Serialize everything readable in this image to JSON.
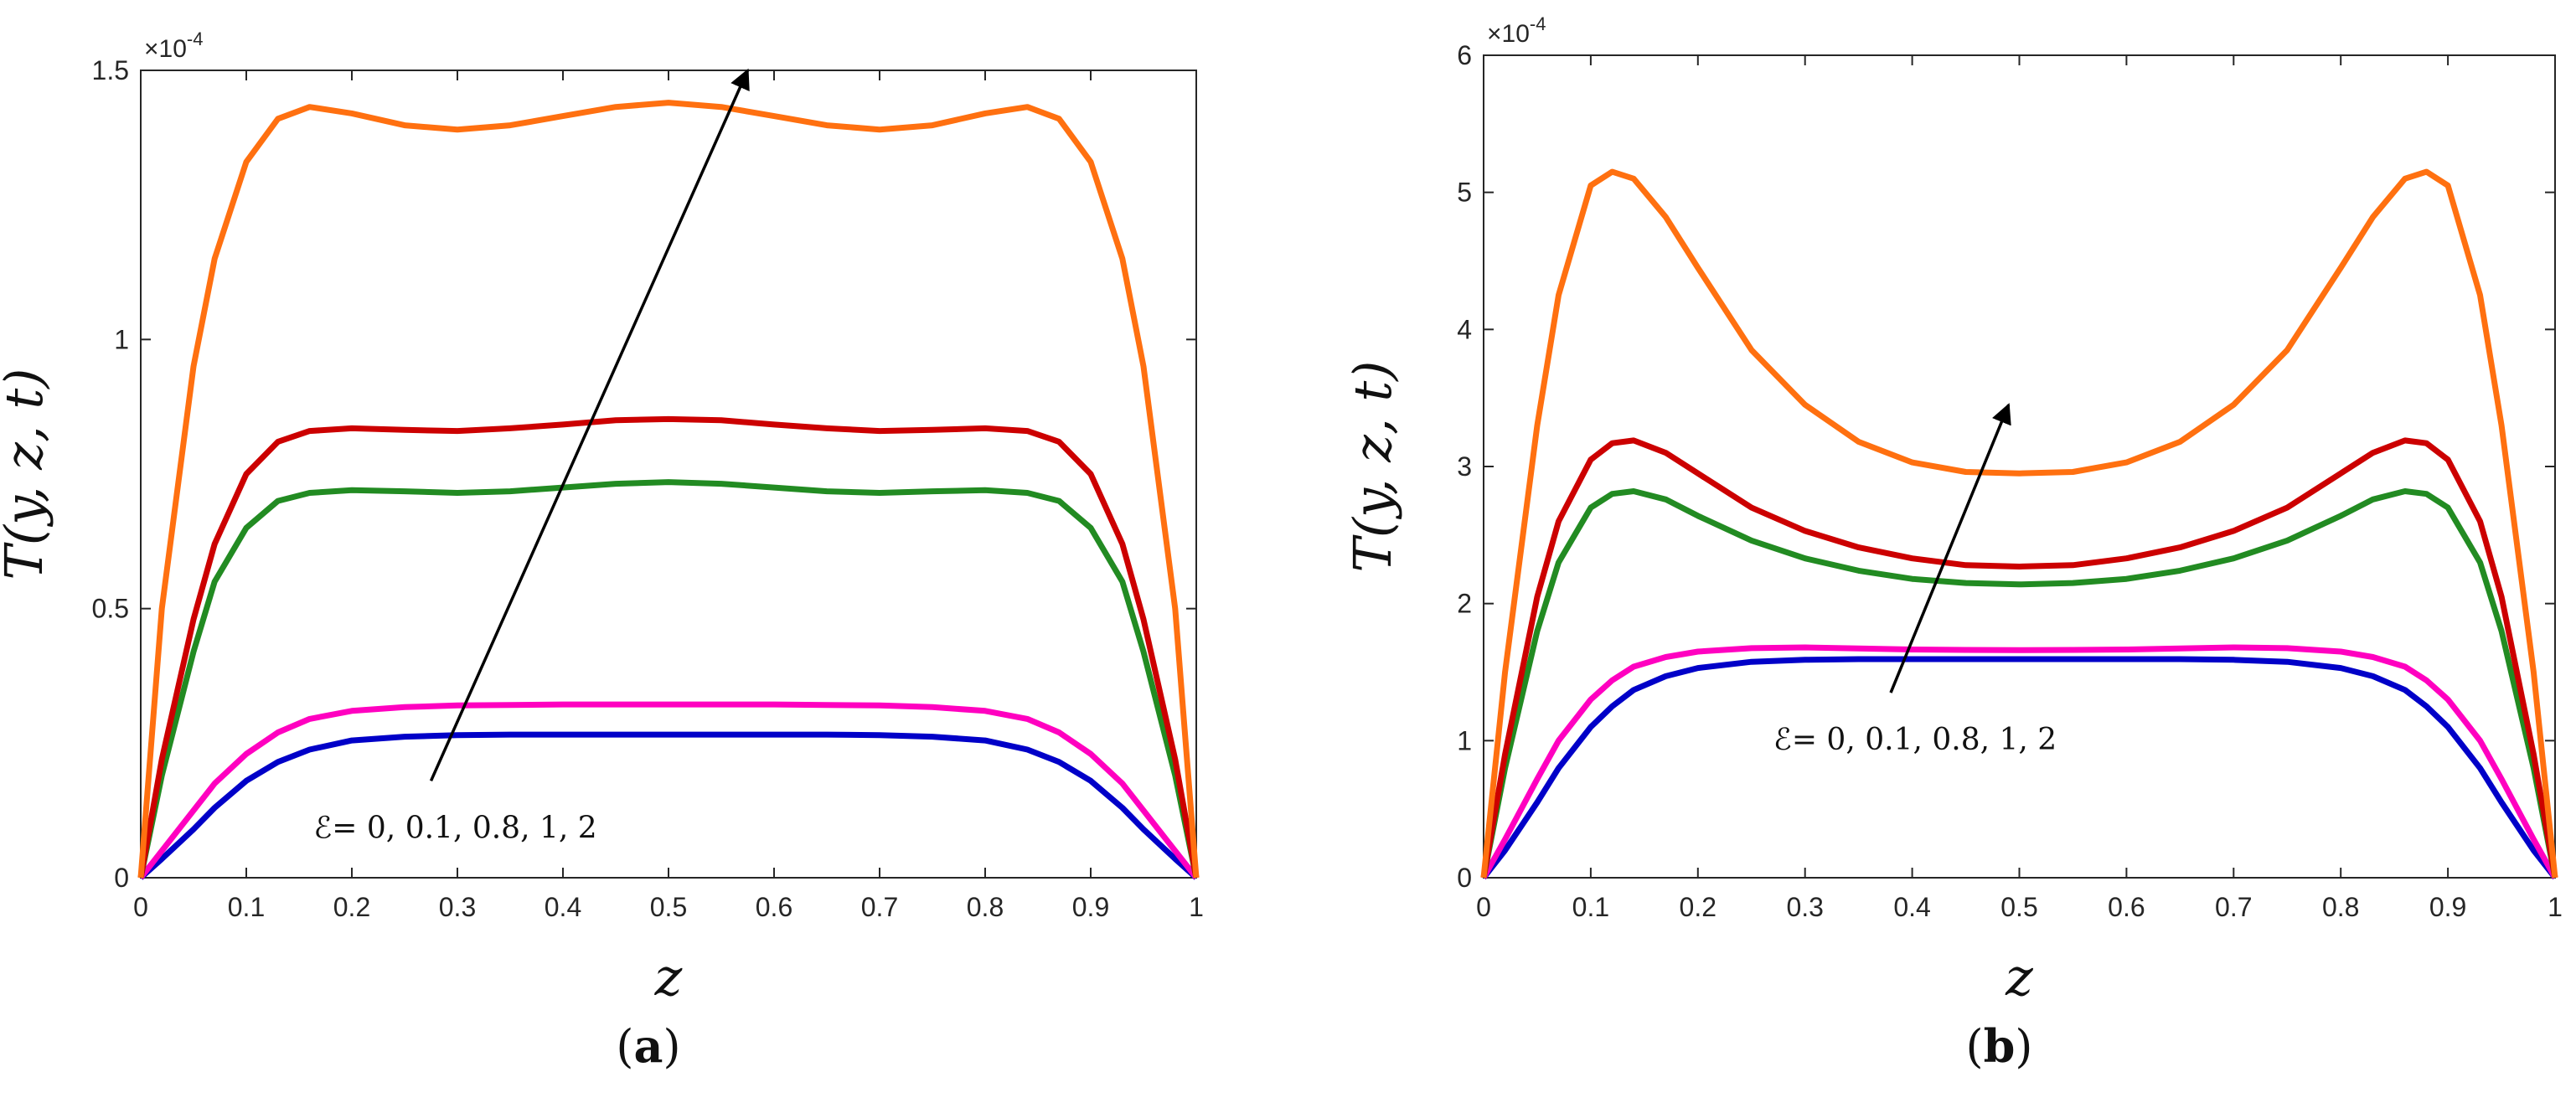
{
  "chart_data": [
    {
      "type": "line",
      "panel": "(a)",
      "panel_letter": "a",
      "xlabel": "z",
      "ylabel": "T(y, z, t)",
      "xlim": [
        0,
        1
      ],
      "ylim": [
        0,
        1.5
      ],
      "y_exponent": "×10^-4",
      "xticks": [
        0,
        0.1,
        0.2,
        0.3,
        0.4,
        0.5,
        0.6,
        0.7,
        0.8,
        0.9,
        1
      ],
      "xtick_labels": [
        "0",
        "0.1",
        "0.2",
        "0.3",
        "0.4",
        "0.5",
        "0.6",
        "0.7",
        "0.8",
        "0.9",
        "1"
      ],
      "yticks": [
        0,
        0.5,
        1,
        1.5
      ],
      "ytick_labels": [
        "0",
        "0.5",
        "1",
        "1.5"
      ],
      "annotation": {
        "text": "ℰ= 0, 0.1, 0.8, 1, 2",
        "arrow_from": [
          0.275,
          0.18
        ],
        "arrow_to": [
          0.575,
          1.5
        ]
      },
      "x": [
        0,
        0.02,
        0.05,
        0.07,
        0.1,
        0.13,
        0.16,
        0.2,
        0.25,
        0.3,
        0.35,
        0.4,
        0.45,
        0.5,
        0.55,
        0.6,
        0.65,
        0.7,
        0.75,
        0.8,
        0.84,
        0.87,
        0.9,
        0.93,
        0.95,
        0.98,
        1
      ],
      "series": [
        {
          "name": "ℰ = 0",
          "color": "#0000c8",
          "values": [
            0,
            0.035,
            0.09,
            0.13,
            0.18,
            0.215,
            0.238,
            0.255,
            0.262,
            0.265,
            0.266,
            0.266,
            0.266,
            0.266,
            0.266,
            0.266,
            0.266,
            0.265,
            0.262,
            0.255,
            0.238,
            0.215,
            0.18,
            0.13,
            0.09,
            0.035,
            0
          ]
        },
        {
          "name": "ℰ = 0.1",
          "color": "#ff00c0",
          "values": [
            0,
            0.05,
            0.125,
            0.175,
            0.23,
            0.27,
            0.295,
            0.31,
            0.317,
            0.32,
            0.321,
            0.322,
            0.322,
            0.322,
            0.322,
            0.322,
            0.321,
            0.32,
            0.317,
            0.31,
            0.295,
            0.27,
            0.23,
            0.175,
            0.125,
            0.05,
            0
          ]
        },
        {
          "name": "ℰ = 0.8",
          "color": "#228b22",
          "values": [
            0,
            0.19,
            0.42,
            0.55,
            0.65,
            0.7,
            0.715,
            0.72,
            0.718,
            0.715,
            0.718,
            0.725,
            0.732,
            0.735,
            0.732,
            0.725,
            0.718,
            0.715,
            0.718,
            0.72,
            0.715,
            0.7,
            0.65,
            0.55,
            0.42,
            0.19,
            0
          ]
        },
        {
          "name": "ℰ = 1",
          "color": "#cc0000",
          "values": [
            0,
            0.22,
            0.48,
            0.62,
            0.75,
            0.81,
            0.83,
            0.835,
            0.832,
            0.83,
            0.835,
            0.842,
            0.85,
            0.852,
            0.85,
            0.842,
            0.835,
            0.83,
            0.832,
            0.835,
            0.83,
            0.81,
            0.75,
            0.62,
            0.48,
            0.22,
            0
          ]
        },
        {
          "name": "ℰ = 2",
          "color": "#ff7010",
          "values": [
            0,
            0.5,
            0.95,
            1.15,
            1.33,
            1.41,
            1.432,
            1.42,
            1.398,
            1.39,
            1.398,
            1.415,
            1.432,
            1.44,
            1.432,
            1.415,
            1.398,
            1.39,
            1.398,
            1.42,
            1.432,
            1.41,
            1.33,
            1.15,
            0.95,
            0.5,
            0
          ]
        }
      ]
    },
    {
      "type": "line",
      "panel": "(b)",
      "panel_letter": "b",
      "xlabel": "z",
      "ylabel": "T(y, z, t)",
      "xlim": [
        0,
        1
      ],
      "ylim": [
        0,
        6
      ],
      "y_exponent": "×10^-4",
      "xticks": [
        0,
        0.1,
        0.2,
        0.3,
        0.4,
        0.5,
        0.6,
        0.7,
        0.8,
        0.9,
        1
      ],
      "xtick_labels": [
        "0",
        "0.1",
        "0.2",
        "0.3",
        "0.4",
        "0.5",
        "0.6",
        "0.7",
        "0.8",
        "0.9",
        "1"
      ],
      "yticks": [
        0,
        1,
        2,
        3,
        4,
        5,
        6
      ],
      "ytick_labels": [
        "0",
        "1",
        "2",
        "3",
        "4",
        "5",
        "6"
      ],
      "annotation": {
        "text": "ℰ= 0, 0.1, 0.8, 1, 2",
        "arrow_from": [
          0.38,
          1.35
        ],
        "arrow_to": [
          0.49,
          3.45
        ]
      },
      "x": [
        0,
        0.02,
        0.05,
        0.07,
        0.1,
        0.12,
        0.14,
        0.17,
        0.2,
        0.25,
        0.3,
        0.35,
        0.4,
        0.45,
        0.5,
        0.55,
        0.6,
        0.65,
        0.7,
        0.75,
        0.8,
        0.83,
        0.86,
        0.88,
        0.9,
        0.93,
        0.95,
        0.98,
        1
      ],
      "series": [
        {
          "name": "ℰ = 0",
          "color": "#0000c8",
          "values": [
            0,
            0.2,
            0.55,
            0.8,
            1.1,
            1.25,
            1.37,
            1.47,
            1.53,
            1.575,
            1.59,
            1.595,
            1.595,
            1.595,
            1.595,
            1.595,
            1.595,
            1.595,
            1.59,
            1.575,
            1.53,
            1.47,
            1.37,
            1.25,
            1.1,
            0.8,
            0.55,
            0.2,
            0
          ]
        },
        {
          "name": "ℰ = 0.1",
          "color": "#ff00c0",
          "values": [
            0,
            0.28,
            0.72,
            1.0,
            1.3,
            1.44,
            1.54,
            1.61,
            1.65,
            1.675,
            1.68,
            1.672,
            1.665,
            1.662,
            1.66,
            1.662,
            1.665,
            1.672,
            1.68,
            1.675,
            1.65,
            1.61,
            1.54,
            1.44,
            1.3,
            1.0,
            0.72,
            0.28,
            0
          ]
        },
        {
          "name": "ℰ = 0.8",
          "color": "#228b22",
          "values": [
            0,
            0.8,
            1.8,
            2.3,
            2.7,
            2.8,
            2.82,
            2.76,
            2.64,
            2.46,
            2.33,
            2.24,
            2.18,
            2.15,
            2.14,
            2.15,
            2.18,
            2.24,
            2.33,
            2.46,
            2.64,
            2.76,
            2.82,
            2.8,
            2.7,
            2.3,
            1.8,
            0.8,
            0
          ]
        },
        {
          "name": "ℰ = 1",
          "color": "#cc0000",
          "values": [
            0,
            0.9,
            2.05,
            2.6,
            3.05,
            3.17,
            3.19,
            3.1,
            2.95,
            2.7,
            2.53,
            2.41,
            2.33,
            2.28,
            2.27,
            2.28,
            2.33,
            2.41,
            2.53,
            2.7,
            2.95,
            3.1,
            3.19,
            3.17,
            3.05,
            2.6,
            2.05,
            0.9,
            0
          ]
        },
        {
          "name": "ℰ = 2",
          "color": "#ff7010",
          "values": [
            0,
            1.5,
            3.3,
            4.25,
            5.05,
            5.15,
            5.1,
            4.82,
            4.45,
            3.85,
            3.45,
            3.18,
            3.03,
            2.96,
            2.95,
            2.96,
            3.03,
            3.18,
            3.45,
            3.85,
            4.45,
            4.82,
            5.1,
            5.15,
            5.05,
            4.25,
            3.3,
            1.5,
            0
          ]
        }
      ]
    }
  ]
}
